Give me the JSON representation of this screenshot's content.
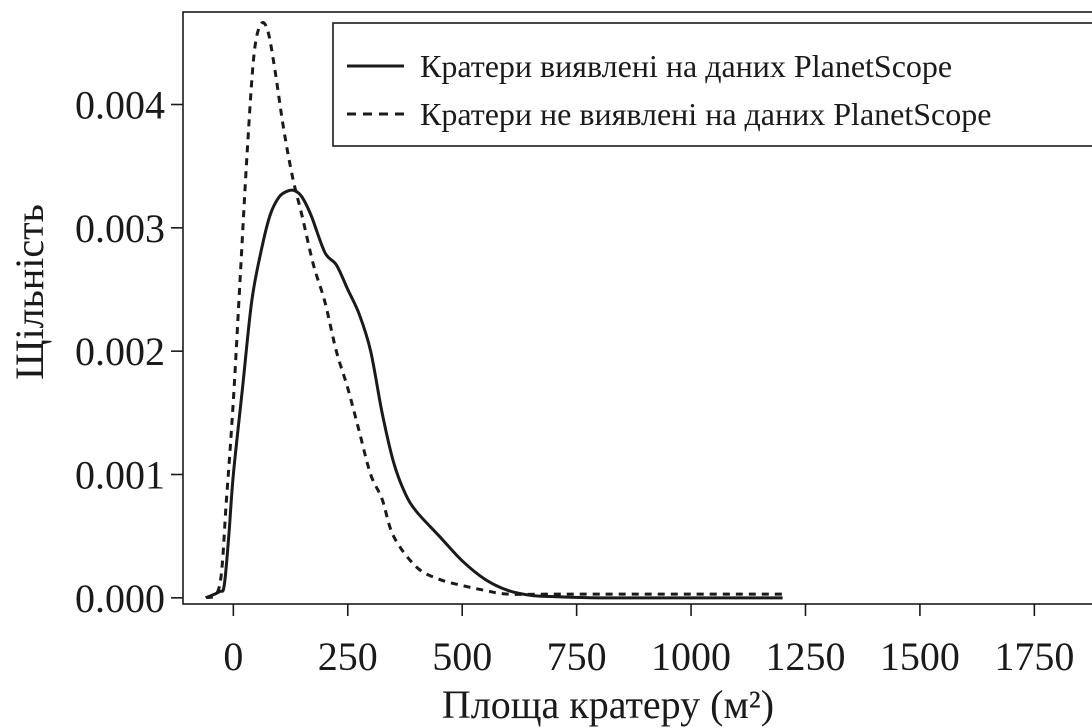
{
  "chart_data": {
    "type": "line",
    "title": "",
    "xlabel": "Площа кратеру (м²)",
    "ylabel": "Щільність",
    "xlim": [
      -110,
      1900
    ],
    "ylim": [
      -5e-05,
      0.00475
    ],
    "xticks": [
      0,
      250,
      500,
      750,
      1000,
      1250,
      1500,
      1750
    ],
    "xtick_labels": [
      "0",
      "250",
      "500",
      "750",
      "1000",
      "1250",
      "1500",
      "1750"
    ],
    "yticks": [
      0.0,
      0.001,
      0.002,
      0.003,
      0.004
    ],
    "ytick_labels": [
      "0.000",
      "0.001",
      "0.002",
      "0.003",
      "0.004"
    ],
    "grid": false,
    "legend_position": "top-right",
    "series": [
      {
        "name": "Кратери виявлені на даних PlanetScope",
        "style": "solid",
        "color": "#1a1a1a",
        "x": [
          -60,
          -30,
          -20,
          -10,
          0,
          20,
          40,
          60,
          80,
          100,
          120,
          135,
          150,
          170,
          200,
          225,
          250,
          275,
          300,
          325,
          350,
          375,
          400,
          450,
          500,
          550,
          600,
          650,
          700,
          800,
          1000,
          1200
        ],
        "y": [
          0.0,
          5e-05,
          0.0001,
          0.0005,
          0.001,
          0.0017,
          0.0024,
          0.0028,
          0.0031,
          0.00325,
          0.0033,
          0.0033,
          0.00325,
          0.0031,
          0.0028,
          0.0027,
          0.0025,
          0.0023,
          0.002,
          0.0015,
          0.0011,
          0.00085,
          0.0007,
          0.0005,
          0.0003,
          0.00015,
          6e-05,
          2e-05,
          1e-05,
          0.0,
          0.0,
          0.0
        ]
      },
      {
        "name": "Кратери не виявлені на даних PlanetScope",
        "style": "dashed",
        "color": "#1a1a1a",
        "x": [
          -60,
          -30,
          -15,
          0,
          15,
          30,
          45,
          60,
          75,
          90,
          110,
          130,
          150,
          175,
          200,
          225,
          250,
          275,
          300,
          325,
          350,
          400,
          450,
          500,
          550,
          600,
          700,
          800,
          1000,
          1200
        ],
        "y": [
          0.0,
          0.0001,
          0.0008,
          0.0016,
          0.0026,
          0.0036,
          0.0044,
          0.00465,
          0.0046,
          0.0043,
          0.0038,
          0.0034,
          0.0031,
          0.0027,
          0.0024,
          0.002,
          0.0017,
          0.00135,
          0.001,
          0.0008,
          0.0005,
          0.00025,
          0.00015,
          0.0001,
          6e-05,
          3e-05,
          3e-05,
          3e-05,
          3e-05,
          3e-05
        ]
      }
    ]
  }
}
